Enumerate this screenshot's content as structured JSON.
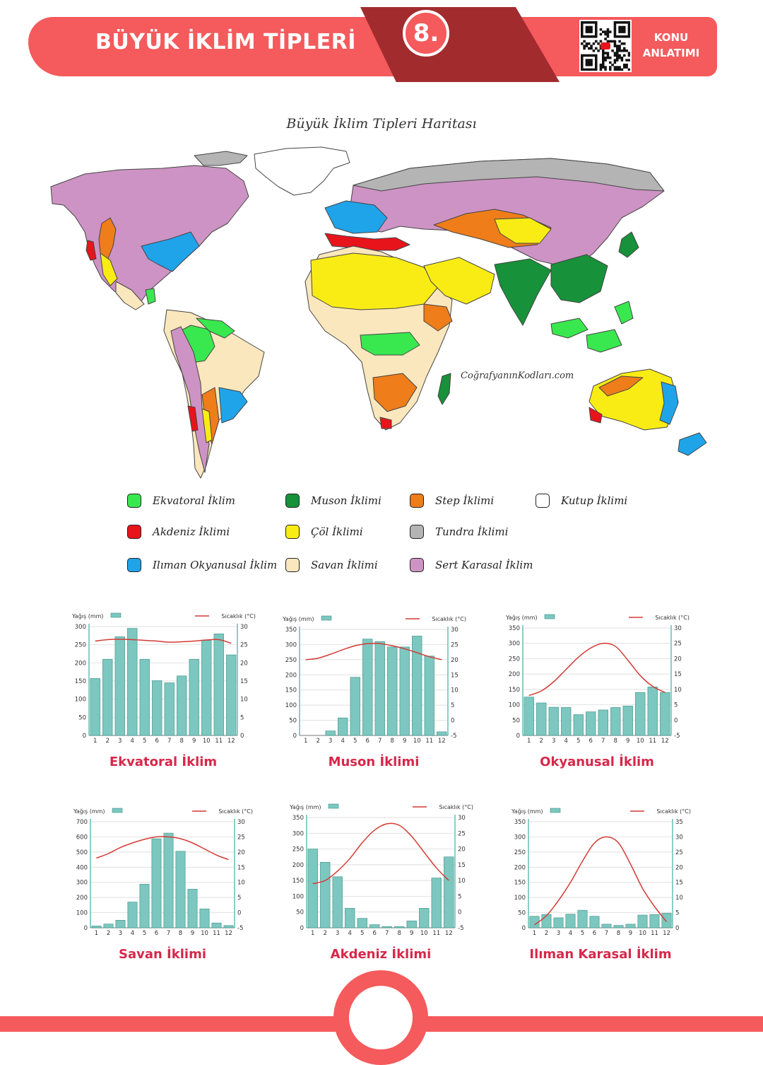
{
  "header": {
    "title": "BÜYÜK İKLİM TİPLERİ",
    "number": "8.",
    "konu_line1": "KONU",
    "konu_line2": "ANLATIMI",
    "qr_icon": "qr-code-icon",
    "brand_color": "#f55a5c",
    "band_color": "#a22b2e"
  },
  "map": {
    "title": "Büyük İklim Tipleri Haritası",
    "watermark": "CoğrafyanınKodları.com"
  },
  "legend": [
    {
      "label": "Ekvatoral İklim",
      "color": "#39e84f"
    },
    {
      "label": "Muson İklimi",
      "color": "#17913a"
    },
    {
      "label": "Step İklimi",
      "color": "#ee7d1a"
    },
    {
      "label": "Kutup İklimi",
      "color": "#ffffff"
    },
    {
      "label": "Akdeniz İklimi",
      "color": "#e8141c"
    },
    {
      "label": "Çöl İklimi",
      "color": "#f9ec14"
    },
    {
      "label": "Tundra İklimi",
      "color": "#b4b4b4"
    },
    {
      "label": "Ilıman Okyanusal İklim",
      "color": "#1fa4ea"
    },
    {
      "label": "Savan İklimi",
      "color": "#fbe7bd"
    },
    {
      "label": "Sert Karasal İklim",
      "color": "#cd93c4"
    }
  ],
  "chart_data": [
    {
      "type": "bar",
      "title": "Ekvatoral İklim",
      "ylabel": "Yağış (mm)",
      "y2label": "Sıcaklık (°C)",
      "categories": [
        "1",
        "2",
        "3",
        "4",
        "5",
        "6",
        "7",
        "8",
        "9",
        "10",
        "11",
        "12"
      ],
      "ylim": [
        0,
        300
      ],
      "y2lim": [
        0,
        30
      ],
      "yticks": [
        "0",
        "50",
        "100",
        "150",
        "200",
        "250",
        "300"
      ],
      "y2ticks": [
        "0",
        "5",
        "10",
        "15",
        "20",
        "25",
        "30"
      ],
      "series": [
        {
          "name": "Yağış (mm)",
          "type": "bar",
          "values": [
            157,
            210,
            272,
            295,
            210,
            151,
            145,
            164,
            210,
            262,
            280,
            222
          ]
        },
        {
          "name": "Sıcaklık (°C)",
          "type": "line",
          "values": [
            26,
            26.4,
            26.5,
            26.4,
            26.2,
            26,
            25.7,
            25.8,
            26,
            26.3,
            26.4,
            25.4
          ]
        }
      ]
    },
    {
      "type": "bar",
      "title": "Muson İklimi",
      "ylabel": "Yağış (mm)",
      "y2label": "Sıcaklık (°C)",
      "categories": [
        "1",
        "2",
        "3",
        "4",
        "5",
        "6",
        "7",
        "8",
        "9",
        "10",
        "11",
        "12"
      ],
      "ylim": [
        0,
        350
      ],
      "y2lim": [
        -5,
        30
      ],
      "yticks": [
        "0",
        "50",
        "100",
        "150",
        "200",
        "250",
        "300",
        "350"
      ],
      "y2ticks": [
        "-5",
        "0",
        "5",
        "10",
        "15",
        "20",
        "25",
        "30"
      ],
      "series": [
        {
          "name": "Yağış (mm)",
          "type": "bar",
          "values": [
            0,
            0,
            15,
            58,
            192,
            318,
            310,
            292,
            292,
            328,
            262,
            12
          ]
        },
        {
          "name": "Sıcaklık (°C)",
          "type": "line",
          "values": [
            20,
            20.5,
            21.8,
            23.3,
            24.6,
            25.3,
            25.3,
            24.6,
            23.6,
            22.3,
            21,
            20
          ]
        }
      ]
    },
    {
      "type": "bar",
      "title": "Okyanusal İklim",
      "ylabel": "Yağış (mm)",
      "y2label": "Sıcaklık (°C)",
      "categories": [
        "1",
        "2",
        "3",
        "4",
        "5",
        "6",
        "7",
        "8",
        "9",
        "10",
        "11",
        "12"
      ],
      "ylim": [
        0,
        350
      ],
      "y2lim": [
        -5,
        30
      ],
      "yticks": [
        "0",
        "50",
        "100",
        "150",
        "200",
        "250",
        "300",
        "350"
      ],
      "y2ticks": [
        "-5",
        "0",
        "5",
        "10",
        "15",
        "20",
        "25",
        "30"
      ],
      "series": [
        {
          "name": "Yağış (mm)",
          "type": "bar",
          "values": [
            125,
            106,
            92,
            91,
            68,
            77,
            83,
            91,
            96,
            140,
            158,
            140
          ]
        },
        {
          "name": "Sıcaklık (°C)",
          "type": "line",
          "values": [
            8,
            9.5,
            12.5,
            16.5,
            20.5,
            23.5,
            25,
            24,
            19.5,
            14.5,
            11,
            9
          ]
        }
      ]
    },
    {
      "type": "bar",
      "title": "Savan İklimi",
      "ylabel": "Yağış (mm)",
      "y2label": "Sıcaklık (°C)",
      "categories": [
        "1",
        "2",
        "3",
        "4",
        "5",
        "6",
        "7",
        "8",
        "9",
        "10",
        "11",
        "12"
      ],
      "ylim": [
        0,
        700
      ],
      "y2lim": [
        -5,
        30
      ],
      "yticks": [
        "0",
        "100",
        "200",
        "300",
        "400",
        "500",
        "600",
        "700"
      ],
      "y2ticks": [
        "-5",
        "0",
        "5",
        "10",
        "15",
        "20",
        "25",
        "30"
      ],
      "series": [
        {
          "name": "Yağış (mm)",
          "type": "bar",
          "values": [
            12,
            25,
            50,
            170,
            288,
            588,
            625,
            505,
            255,
            125,
            32,
            15
          ]
        },
        {
          "name": "Sıcaklık (°C)",
          "type": "line",
          "values": [
            18,
            19.5,
            21.5,
            23,
            24.2,
            25,
            25,
            24.4,
            23,
            21,
            19,
            17.5
          ]
        }
      ]
    },
    {
      "type": "bar",
      "title": "Akdeniz İklimi",
      "ylabel": "Yağış (mm)",
      "y2label": "Sıcaklık (°C)",
      "categories": [
        "1",
        "2",
        "3",
        "4",
        "5",
        "6",
        "7",
        "8",
        "9",
        "10",
        "11",
        "12"
      ],
      "ylim": [
        0,
        350
      ],
      "y2lim": [
        -5,
        30
      ],
      "yticks": [
        "0",
        "50",
        "100",
        "150",
        "200",
        "250",
        "300",
        "350"
      ],
      "y2ticks": [
        "-5",
        "0",
        "5",
        "10",
        "15",
        "20",
        "25",
        "30"
      ],
      "series": [
        {
          "name": "Yağış (mm)",
          "type": "bar",
          "values": [
            250,
            208,
            162,
            62,
            30,
            10,
            4,
            4,
            22,
            62,
            158,
            225
          ]
        },
        {
          "name": "Sıcaklık (°C)",
          "type": "line",
          "values": [
            9,
            10,
            13,
            17,
            22,
            26,
            28,
            27.5,
            24,
            19,
            14,
            10
          ]
        }
      ]
    },
    {
      "type": "bar",
      "title": "Ilıman Karasal İklim",
      "ylabel": "Yağış (mm)",
      "y2label": "Sıcaklık (°C)",
      "categories": [
        "1",
        "2",
        "3",
        "4",
        "5",
        "6",
        "7",
        "8",
        "9",
        "10",
        "11",
        "12"
      ],
      "ylim": [
        0,
        350
      ],
      "y2lim": [
        0,
        35
      ],
      "yticks": [
        "0",
        "50",
        "100",
        "150",
        "200",
        "250",
        "300",
        "350"
      ],
      "y2ticks": [
        "0",
        "5",
        "10",
        "15",
        "20",
        "25",
        "30",
        "35"
      ],
      "series": [
        {
          "name": "Yağış (mm)",
          "type": "bar",
          "values": [
            38,
            44,
            33,
            45,
            58,
            38,
            12,
            8,
            12,
            42,
            44,
            48
          ]
        },
        {
          "name": "Sıcaklık (°C)",
          "type": "line",
          "values": [
            1,
            4,
            9,
            15,
            22,
            28,
            30,
            28,
            21,
            13,
            7,
            2
          ]
        }
      ]
    }
  ]
}
